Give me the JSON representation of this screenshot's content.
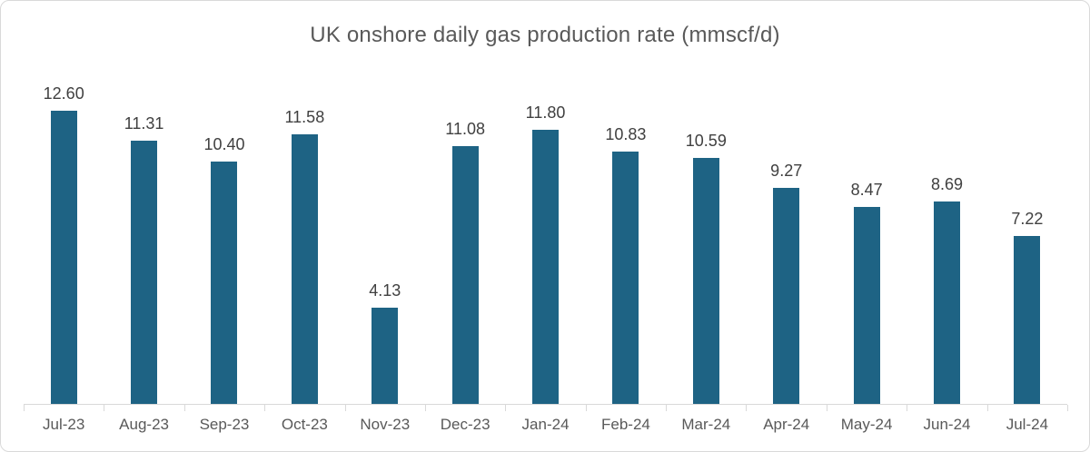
{
  "chart_data": {
    "type": "bar",
    "title": "UK onshore daily gas production rate (mmscf/d)",
    "categories": [
      "Jul-23",
      "Aug-23",
      "Sep-23",
      "Oct-23",
      "Nov-23",
      "Dec-23",
      "Jan-24",
      "Feb-24",
      "Mar-24",
      "Apr-24",
      "May-24",
      "Jun-24",
      "Jul-24"
    ],
    "values": [
      12.6,
      11.31,
      10.4,
      11.58,
      4.13,
      11.08,
      11.8,
      10.83,
      10.59,
      9.27,
      8.47,
      8.69,
      7.22
    ],
    "data_labels": [
      "12.60",
      "11.31",
      "10.40",
      "11.58",
      "4.13",
      "11.08",
      "11.80",
      "10.83",
      "10.59",
      "9.27",
      "8.47",
      "8.69",
      "7.22"
    ],
    "xlabel": "",
    "ylabel": "",
    "ylim": [
      0,
      14.2
    ],
    "grid": false,
    "legend": false,
    "colors": {
      "bar": "#1e6384",
      "title": "#595959",
      "data_label": "#404040",
      "axis_label": "#595959",
      "axis_line": "#d9d9d9",
      "frame_border": "#d9d9d9",
      "background": "#ffffff"
    }
  }
}
